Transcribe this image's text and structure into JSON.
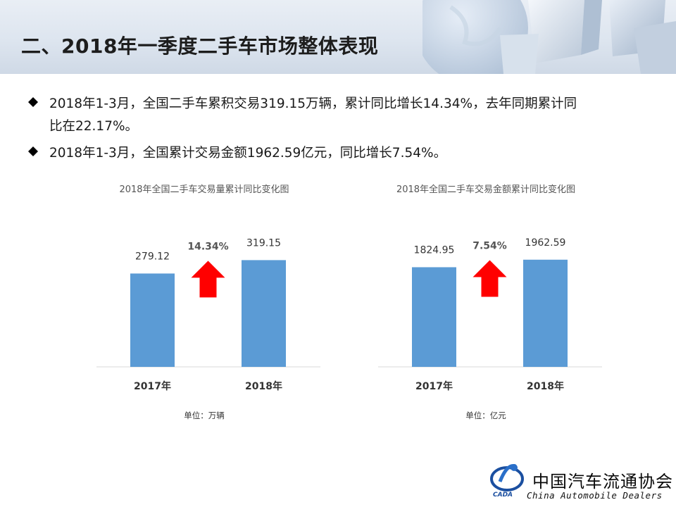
{
  "header": {
    "title": "二、2018年一季度二手车市场整体表现"
  },
  "bullets": [
    {
      "line1": "2018年1-3月，全国二手车累积交易319.15万辆，累计同比增长14.34%，去年同期累计同",
      "line2": "比在22.17%。"
    },
    {
      "line1": "2018年1-3月，全国累计交易金额1962.59亿元，同比增长7.54%。",
      "line2": ""
    }
  ],
  "chart_data": [
    {
      "type": "bar",
      "title": "2018年全国二手车交易量累计同比变化图",
      "categories": [
        "2017年",
        "2018年"
      ],
      "values": [
        279.12,
        319.15
      ],
      "value_labels": [
        "279.12",
        "319.15"
      ],
      "growth_label": "14.34%",
      "unit": "单位：万辆",
      "ylim": [
        0,
        400
      ],
      "bar_color": "#5b9bd5",
      "arrow_color": "#ff0000",
      "grid": false
    },
    {
      "type": "bar",
      "title": "2018年全国二手车交易金额累计同比变化图",
      "categories": [
        "2017年",
        "2018年"
      ],
      "values": [
        1824.95,
        1962.59
      ],
      "value_labels": [
        "1824.95",
        "1962.59"
      ],
      "growth_label": "7.54%",
      "unit": "单位：亿元",
      "ylim": [
        0,
        2450
      ],
      "bar_color": "#5b9bd5",
      "arrow_color": "#ff0000",
      "grid": false
    }
  ],
  "logo": {
    "name_cn": "中国汽车流通协会",
    "name_en": "China  Automobile Dealers",
    "abbr": "CADA"
  }
}
